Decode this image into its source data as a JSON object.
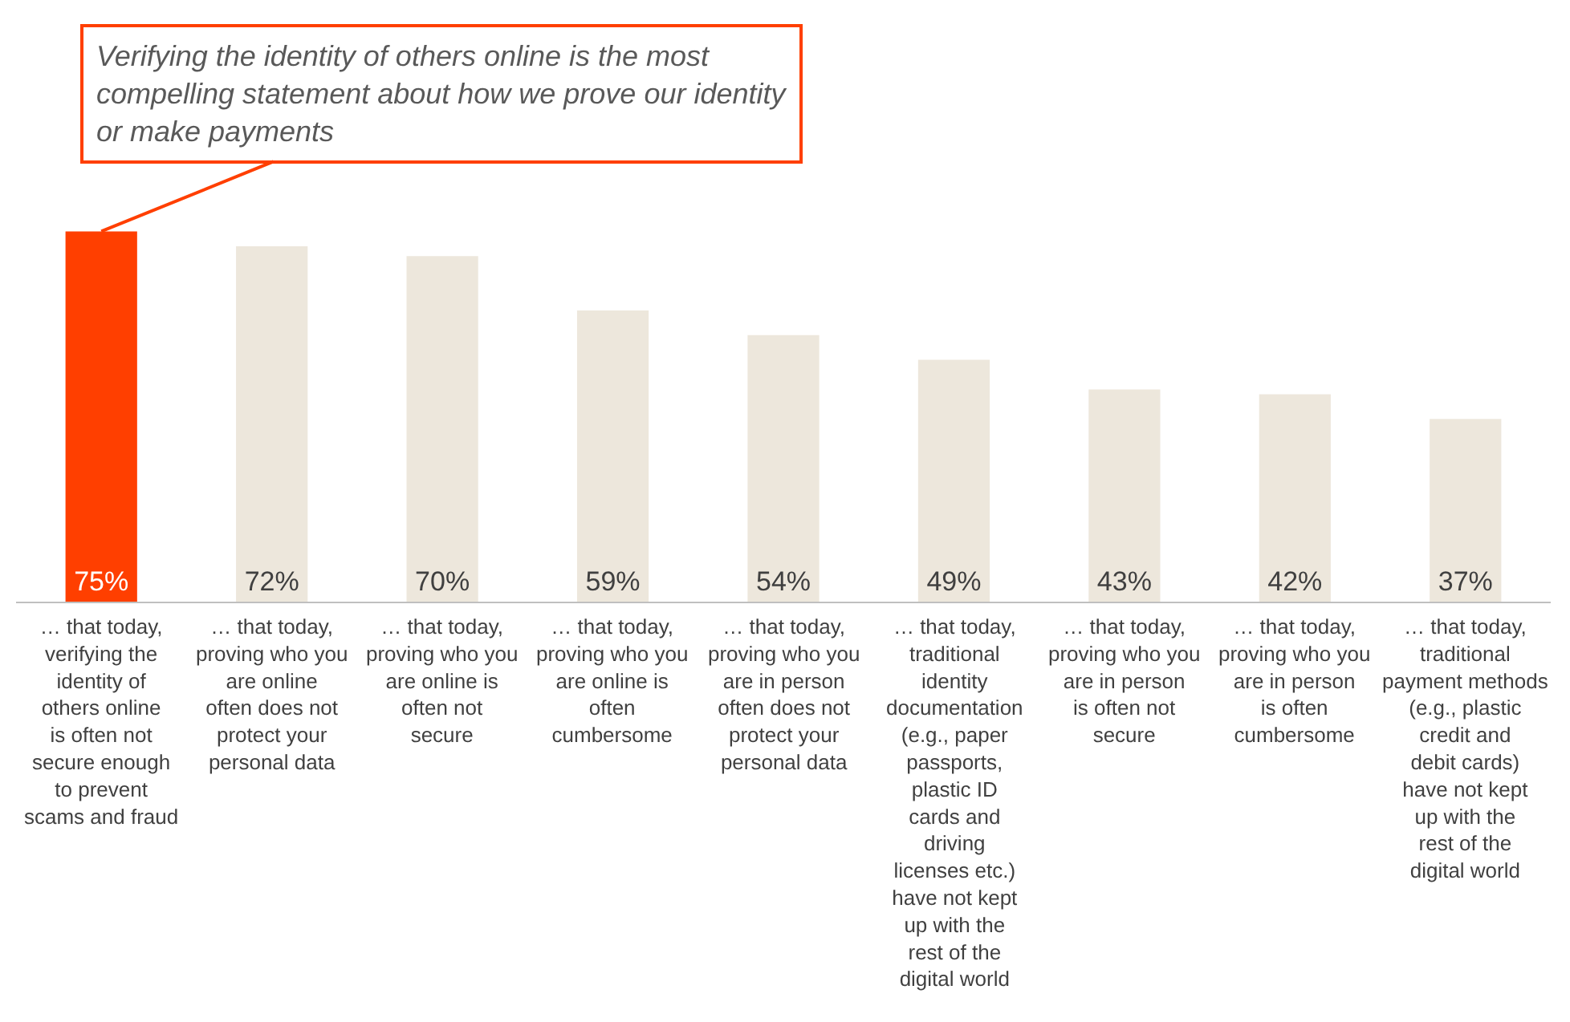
{
  "chart_data": {
    "type": "bar",
    "categories": [
      "… that today, verifying the identity of others online is often not secure enough to prevent scams and fraud",
      "… that today, proving who you are online often does not protect your personal data",
      "… that today, proving who you are online is often not secure",
      "… that today, proving who you are online is often cumbersome",
      "… that today, proving who you are in person often does not protect your personal data",
      "… that today, traditional identity documentation (e.g., paper passports, plastic ID cards and driving licenses etc.) have not kept up with the rest of the digital world",
      "… that today, proving who you are in person is often not secure",
      "… that today, proving who you are in person is often cumbersome",
      "… that today, traditional payment methods (e.g., plastic credit and debit cards) have not kept up with the rest of the digital world"
    ],
    "values": [
      75,
      72,
      70,
      59,
      54,
      49,
      43,
      42,
      37
    ],
    "value_labels": [
      "75%",
      "72%",
      "70%",
      "59%",
      "54%",
      "49%",
      "43%",
      "42%",
      "37%"
    ],
    "colors": [
      "#ff3f00",
      "#ede7dc",
      "#ede7dc",
      "#ede7dc",
      "#ede7dc",
      "#ede7dc",
      "#ede7dc",
      "#ede7dc",
      "#ede7dc"
    ],
    "annotations": [
      {
        "text": "Verifying the identity of others online is the most compelling statement about how we prove our identity or make payments",
        "x": "… that today, verifying the identity of others online is often not secure enough to prevent scams and fraud",
        "y": 75
      }
    ],
    "legend": false
  }
}
